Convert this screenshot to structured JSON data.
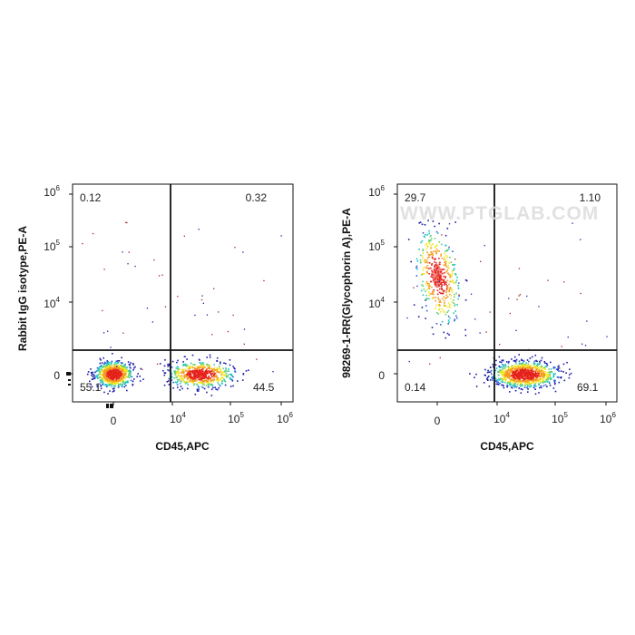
{
  "watermark": "WWW.PTGLAB.COM",
  "colors": {
    "gate_line": "#111111",
    "frame": "#111111",
    "density_low": "#1a1aa8",
    "density_mid": "#17c2c9",
    "density_high": "#f2e61a",
    "density_peak": "#e5231b"
  },
  "chart_data": [
    {
      "type": "scatter",
      "subtype": "flow-cytometry-density-dot-plot",
      "xlabel": "CD45,APC",
      "ylabel": "Rabbit IgG isotype,PE-A",
      "x_scale": "biexponential",
      "y_scale": "biexponential",
      "x_ticks": [
        {
          "base": "0",
          "exp": ""
        },
        {
          "base": "10",
          "exp": "4"
        },
        {
          "base": "10",
          "exp": "5"
        },
        {
          "base": "10",
          "exp": "6"
        }
      ],
      "y_ticks": [
        {
          "base": "0",
          "exp": ""
        },
        {
          "base": "10",
          "exp": "4"
        },
        {
          "base": "10",
          "exp": "5"
        },
        {
          "base": "10",
          "exp": "6"
        }
      ],
      "quadrant_gate": {
        "x": 9000,
        "y": 2500
      },
      "quadrants": {
        "top_left": "0.12",
        "top_right": "0.32",
        "bottom_left": "55.1",
        "bottom_right": "44.5"
      },
      "populations": [
        {
          "name": "",
          "x_center": 0,
          "y_center": 0,
          "percent": 55.1
        },
        {
          "name": "",
          "x_center": 30000,
          "y_center": 0,
          "percent": 44.5
        }
      ]
    },
    {
      "type": "scatter",
      "subtype": "flow-cytometry-density-dot-plot",
      "xlabel": "CD45,APC",
      "ylabel": "98269-1-RR(Glycophorin A),PE-A",
      "x_scale": "biexponential",
      "y_scale": "biexponential",
      "x_ticks": [
        {
          "base": "0",
          "exp": ""
        },
        {
          "base": "10",
          "exp": "4"
        },
        {
          "base": "10",
          "exp": "5"
        },
        {
          "base": "10",
          "exp": "6"
        }
      ],
      "y_ticks": [
        {
          "base": "0",
          "exp": ""
        },
        {
          "base": "10",
          "exp": "4"
        },
        {
          "base": "10",
          "exp": "5"
        },
        {
          "base": "10",
          "exp": "6"
        }
      ],
      "quadrant_gate": {
        "x": 9000,
        "y": 2500
      },
      "quadrants": {
        "top_left": "29.7",
        "top_right": "1.10",
        "bottom_left": "0.14",
        "bottom_right": "69.1"
      },
      "populations": [
        {
          "name": "",
          "x_center": 0,
          "y_center": 50000,
          "percent": 29.7
        },
        {
          "name": "",
          "x_center": 30000,
          "y_center": 0,
          "percent": 69.1
        }
      ]
    }
  ]
}
